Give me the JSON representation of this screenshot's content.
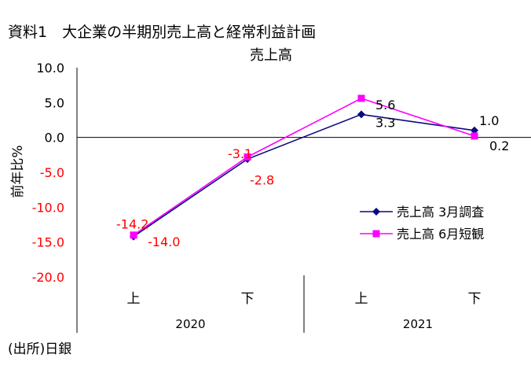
{
  "page": {
    "title": "資料1　大企業の半期別売上高と経常利益計画",
    "source": "(出所)日銀"
  },
  "chart_data": {
    "type": "line",
    "title": "売上高",
    "ylabel": "前年比%",
    "ylim": [
      -20,
      10
    ],
    "yticks": [
      {
        "value": 10,
        "label": "10.0"
      },
      {
        "value": 5,
        "label": "5.0"
      },
      {
        "value": 0,
        "label": "0.0"
      },
      {
        "value": -5,
        "label": "-5.0"
      },
      {
        "value": -10,
        "label": "-10.0"
      },
      {
        "value": -15,
        "label": "-15.0"
      },
      {
        "value": -20,
        "label": "-20.0"
      }
    ],
    "categories": [
      "上",
      "下",
      "上",
      "下"
    ],
    "groups": [
      {
        "label": "2020",
        "span": [
          0,
          1
        ]
      },
      {
        "label": "2021",
        "span": [
          2,
          3
        ]
      }
    ],
    "grid": false,
    "legend_position": "right",
    "colors": {
      "negative_text": "#ff0000",
      "positive_text": "#000000"
    },
    "series": [
      {
        "name": "売上高 3月調査",
        "color": "#0a0a80",
        "marker": "diamond",
        "values": [
          -14.2,
          -3.1,
          3.3,
          1.0
        ],
        "labels": [
          "-14.2",
          "-3.1",
          "3.3",
          "1.0"
        ]
      },
      {
        "name": "売上高 6月短観",
        "color": "#ff00ff",
        "marker": "square",
        "values": [
          -14.0,
          -2.8,
          5.6,
          0.2
        ],
        "labels": [
          "-14.0",
          "-2.8",
          "5.6",
          "0.2"
        ]
      }
    ]
  }
}
